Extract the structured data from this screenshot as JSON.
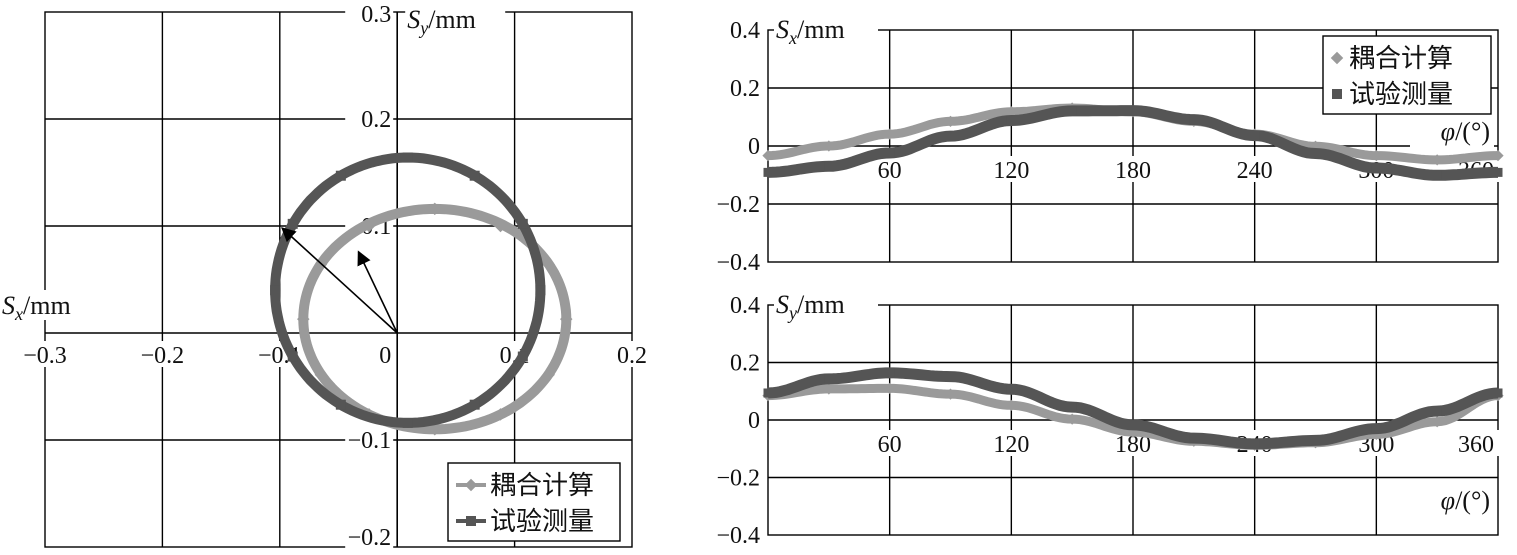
{
  "chart_data": [
    {
      "id": "orbit",
      "type": "line",
      "xlabel": "S_x/mm",
      "ylabel": "S_y/mm",
      "xlim": [
        -0.3,
        0.2
      ],
      "ylim": [
        -0.2,
        0.3
      ],
      "x_ticks": [
        "−0.3",
        "−0.2",
        "−0.1",
        "0",
        "0.1",
        "0.2"
      ],
      "y_ticks": [
        "0.3",
        "0.2",
        "0.1",
        "−0.1",
        "−0.2"
      ],
      "grid": true,
      "legend": "bottom-right",
      "series": [
        {
          "name": "耦合计算",
          "marker": "diamond",
          "color": "#9a9a9a",
          "center": [
            0.032,
            0.013
          ],
          "rx": 0.112,
          "ry": 0.103,
          "ellipse_points": [
            [
              0.144,
              0.013
            ],
            [
              0.129,
              0.064
            ],
            [
              0.088,
              0.1
            ],
            [
              0.032,
              0.116
            ],
            [
              -0.024,
              0.1
            ],
            [
              -0.065,
              0.064
            ],
            [
              -0.08,
              0.013
            ],
            [
              -0.065,
              -0.039
            ],
            [
              -0.024,
              -0.076
            ],
            [
              0.032,
              -0.09
            ],
            [
              0.088,
              -0.076
            ],
            [
              0.129,
              -0.039
            ]
          ]
        },
        {
          "name": "试验测量",
          "marker": "square",
          "color": "#555555",
          "center": [
            0.009,
            0.04
          ],
          "rx": 0.113,
          "ry": 0.124,
          "ellipse_points": [
            [
              0.122,
              0.04
            ],
            [
              0.107,
              0.102
            ],
            [
              0.066,
              0.147
            ],
            [
              0.009,
              0.164
            ],
            [
              -0.048,
              0.147
            ],
            [
              -0.089,
              0.102
            ],
            [
              -0.104,
              0.04
            ],
            [
              -0.089,
              -0.022
            ],
            [
              -0.048,
              -0.067
            ],
            [
              0.009,
              -0.084
            ],
            [
              0.066,
              -0.067
            ],
            [
              0.107,
              -0.022
            ]
          ]
        }
      ],
      "annotations": [
        {
          "type": "arrow",
          "from": [
            0,
            0
          ],
          "to": [
            -0.098,
            0.098
          ]
        },
        {
          "type": "arrow",
          "from": [
            0,
            0
          ],
          "to": [
            -0.033,
            0.076
          ]
        }
      ]
    },
    {
      "id": "sx",
      "type": "line",
      "xlabel": "φ/(°)",
      "ylabel": "S_x/mm",
      "xlim": [
        0,
        360
      ],
      "ylim": [
        -0.4,
        0.4
      ],
      "x_ticks": [
        "60",
        "120",
        "180",
        "240",
        "300",
        "360"
      ],
      "y_ticks": [
        "0.4",
        "0.2",
        "0",
        "−0.2",
        "−0.4"
      ],
      "grid": true,
      "legend": "top-right",
      "series": [
        {
          "name": "耦合计算",
          "marker": "diamond",
          "color": "#9a9a9a",
          "x": [
            0,
            30,
            60,
            90,
            120,
            150,
            180,
            210,
            240,
            270,
            300,
            330,
            360
          ],
          "y": [
            -0.033,
            0.0,
            0.041,
            0.085,
            0.118,
            0.131,
            0.118,
            0.085,
            0.041,
            -0.001,
            -0.033,
            -0.048,
            -0.033
          ]
        },
        {
          "name": "试验测量",
          "marker": "square",
          "color": "#555555",
          "x": [
            0,
            30,
            60,
            90,
            120,
            150,
            180,
            210,
            240,
            270,
            300,
            330,
            360
          ],
          "y": [
            -0.091,
            -0.07,
            -0.024,
            0.034,
            0.088,
            0.121,
            0.122,
            0.091,
            0.036,
            -0.026,
            -0.076,
            -0.101,
            -0.091
          ]
        }
      ]
    },
    {
      "id": "sy",
      "type": "line",
      "xlabel": "φ/(°)",
      "ylabel": "S_y/mm",
      "xlim": [
        0,
        360
      ],
      "ylim": [
        -0.4,
        0.4
      ],
      "x_ticks": [
        "60",
        "120",
        "180",
        "240",
        "300",
        "360"
      ],
      "y_ticks": [
        "0.4",
        "0.2",
        "0",
        "−0.2",
        "−0.4"
      ],
      "grid": true,
      "series": [
        {
          "name": "耦合计算",
          "marker": "diamond",
          "color": "#9a9a9a",
          "x": [
            0,
            30,
            60,
            90,
            120,
            150,
            180,
            210,
            240,
            270,
            300,
            330,
            360
          ],
          "y": [
            0.085,
            0.108,
            0.11,
            0.09,
            0.051,
            0.003,
            -0.042,
            -0.074,
            -0.088,
            -0.079,
            -0.05,
            -0.006,
            0.085
          ]
        },
        {
          "name": "试验测量",
          "marker": "square",
          "color": "#555555",
          "x": [
            0,
            30,
            60,
            90,
            120,
            150,
            180,
            210,
            240,
            270,
            300,
            330,
            360
          ],
          "y": [
            0.094,
            0.143,
            0.164,
            0.151,
            0.107,
            0.045,
            -0.017,
            -0.063,
            -0.083,
            -0.071,
            -0.03,
            0.031,
            0.094
          ]
        }
      ]
    }
  ],
  "legend_labels": {
    "calc": "耦合计算",
    "meas": "试验测量"
  },
  "axis_labels": {
    "sx_main": "S",
    "sx_sub": "x",
    "sy_main": "S",
    "sy_sub": "y",
    "unit": "/mm",
    "phi": "φ",
    "phi_unit": "/(°)"
  }
}
